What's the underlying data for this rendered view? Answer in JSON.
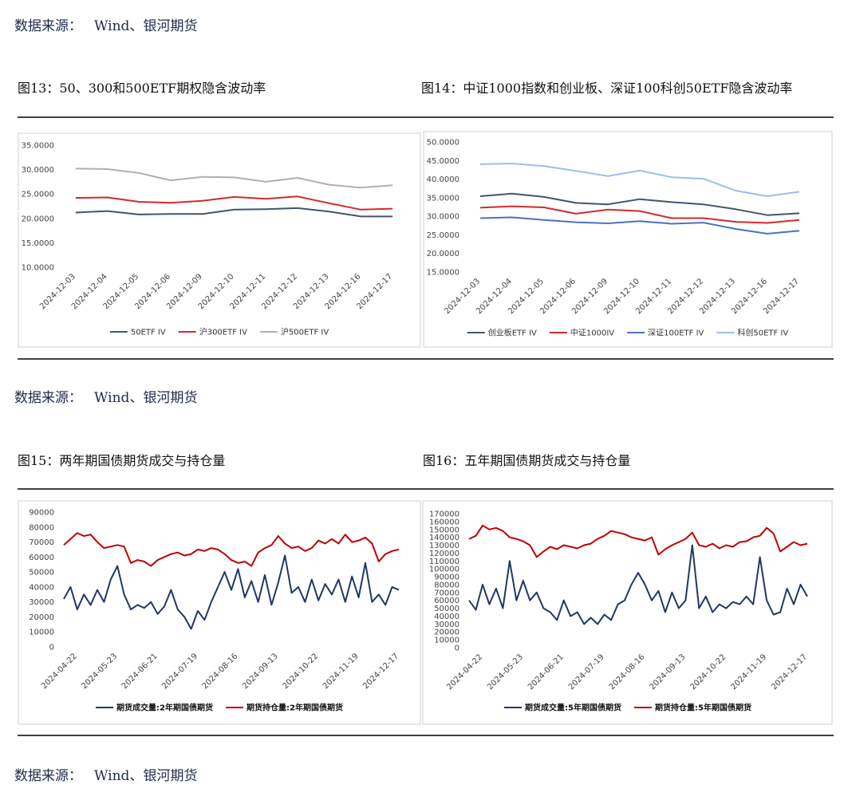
{
  "sources": [
    {
      "label": "数据来源：",
      "text": "Wind、银河期货"
    },
    {
      "label": "数据来源：",
      "text": "Wind、银河期货"
    },
    {
      "label": "数据来源：",
      "text": "Wind、银河期货"
    }
  ],
  "chart_data": [
    {
      "type": "line",
      "title": "图13：50、300和500ETF期权隐含波动率",
      "categories": [
        "2024-12-03",
        "2024-12-04",
        "2024-12-05",
        "2024-12-06",
        "2024-12-09",
        "2024-12-10",
        "2024-12-11",
        "2024-12-12",
        "2024-12-13",
        "2024-12-16",
        "2024-12-17"
      ],
      "ylim": [
        10,
        35
      ],
      "yticks": [
        {
          "value": 10,
          "label": "10.0000"
        },
        {
          "value": 15,
          "label": "15.0000"
        },
        {
          "value": 20,
          "label": "20.0000"
        },
        {
          "value": 25,
          "label": "25.0000"
        },
        {
          "value": 30,
          "label": "30.0000"
        },
        {
          "value": 35,
          "label": "35.0000"
        }
      ],
      "series": [
        {
          "name": "50ETF IV",
          "color": "#44546a",
          "values": [
            21.2,
            21.5,
            20.8,
            20.9,
            20.9,
            21.8,
            21.9,
            22.1,
            21.4,
            20.4,
            20.4
          ]
        },
        {
          "name": "沪300ETF IV",
          "color": "#d42a2a",
          "values": [
            24.2,
            24.3,
            23.4,
            23.2,
            23.6,
            24.4,
            24.0,
            24.5,
            23.1,
            21.8,
            22.0
          ]
        },
        {
          "name": "沪500ETF IV",
          "color": "#b0b0b0",
          "values": [
            30.2,
            30.1,
            29.3,
            27.8,
            28.5,
            28.4,
            27.5,
            28.3,
            26.9,
            26.3,
            26.8
          ]
        }
      ]
    },
    {
      "type": "line",
      "title": "图14：中证1000指数和创业板、深证100科创50ETF隐含波动率",
      "categories": [
        "2024-12-03",
        "2024-12-04",
        "2024-12-05",
        "2024-12-06",
        "2024-12-09",
        "2024-12-10",
        "2024-12-11",
        "2024-12-12",
        "2024-12-13",
        "2024-12-16",
        "2024-12-17"
      ],
      "ylim": [
        15,
        50
      ],
      "yticks": [
        {
          "value": 15,
          "label": "15.0000"
        },
        {
          "value": 20,
          "label": "20.0000"
        },
        {
          "value": 25,
          "label": "25.0000"
        },
        {
          "value": 30,
          "label": "30.0000"
        },
        {
          "value": 35,
          "label": "35.0000"
        },
        {
          "value": 40,
          "label": "40.0000"
        },
        {
          "value": 45,
          "label": "45.0000"
        },
        {
          "value": 50,
          "label": "50.0000"
        }
      ],
      "series": [
        {
          "name": "创业板ETF IV",
          "color": "#44546a",
          "values": [
            35.4,
            36.1,
            35.2,
            33.6,
            33.2,
            34.6,
            33.8,
            33.2,
            31.9,
            30.3,
            30.8
          ]
        },
        {
          "name": "中证1000IV",
          "color": "#d42a2a",
          "values": [
            32.3,
            32.7,
            32.4,
            30.7,
            31.8,
            31.4,
            29.5,
            29.5,
            28.5,
            28.2,
            29.0
          ]
        },
        {
          "name": "深证100ETF IV",
          "color": "#4a72c0",
          "values": [
            29.5,
            29.7,
            29.0,
            28.4,
            28.1,
            28.7,
            28.0,
            28.3,
            26.6,
            25.3,
            26.1
          ]
        },
        {
          "name": "科创50ETF IV",
          "color": "#9dbde8",
          "values": [
            44.0,
            44.2,
            43.5,
            42.2,
            40.8,
            42.3,
            40.5,
            40.1,
            36.9,
            35.4,
            36.6
          ]
        }
      ]
    },
    {
      "type": "line",
      "title": "图15：两年期国债期货成交与持仓量",
      "categories": [
        null,
        null,
        "2024-04-22",
        null,
        null,
        null,
        null,
        null,
        "2024-05-23",
        null,
        null,
        null,
        null,
        null,
        "2024-06-21",
        null,
        null,
        null,
        null,
        null,
        "2024-07-19",
        null,
        null,
        null,
        null,
        null,
        "2024-08-16",
        null,
        null,
        null,
        null,
        null,
        "2024-09-13",
        null,
        null,
        null,
        null,
        null,
        "2024-10-22",
        null,
        null,
        null,
        null,
        null,
        "2024-11-19",
        null,
        null,
        null,
        null,
        null,
        "2024-12-17"
      ],
      "ylim": [
        0,
        90000
      ],
      "yticks": [
        0,
        10000,
        20000,
        30000,
        40000,
        50000,
        60000,
        70000,
        80000,
        90000
      ],
      "series": [
        {
          "name": "期货成交量:2年期国债期货",
          "color": "#203864",
          "values": [
            32000,
            40000,
            25000,
            35000,
            28000,
            38000,
            30000,
            45000,
            54000,
            35000,
            25000,
            28000,
            26000,
            30000,
            22000,
            27000,
            38000,
            25000,
            20000,
            12000,
            24000,
            18000,
            30000,
            40000,
            50000,
            38000,
            52000,
            33000,
            44000,
            30000,
            48000,
            28000,
            43000,
            61000,
            36000,
            40000,
            30000,
            45000,
            31000,
            42000,
            35000,
            45000,
            30000,
            47000,
            33000,
            56000,
            30000,
            35000,
            28000,
            40000,
            38000
          ]
        },
        {
          "name": "期货持仓量:2年期国债期货",
          "color": "#c00000",
          "values": [
            68000,
            72000,
            76000,
            74000,
            75000,
            70000,
            66000,
            67000,
            68000,
            67000,
            56000,
            58000,
            57000,
            54000,
            58000,
            60000,
            62000,
            63000,
            61000,
            62000,
            65000,
            64000,
            66000,
            65000,
            62000,
            58000,
            56000,
            57000,
            54000,
            63000,
            66000,
            68000,
            74000,
            69000,
            66000,
            67000,
            64000,
            66000,
            71000,
            69000,
            72000,
            69000,
            75000,
            70000,
            71000,
            73000,
            69000,
            57000,
            62000,
            64000,
            65000
          ]
        }
      ]
    },
    {
      "type": "line",
      "title": "图16：五年期国债期货成交与持仓量",
      "categories": [
        null,
        null,
        "2024-04-22",
        null,
        null,
        null,
        null,
        null,
        "2024-05-23",
        null,
        null,
        null,
        null,
        null,
        "2024-06-21",
        null,
        null,
        null,
        null,
        null,
        "2024-07-19",
        null,
        null,
        null,
        null,
        null,
        "2024-08-16",
        null,
        null,
        null,
        null,
        null,
        "2024-09-13",
        null,
        null,
        null,
        null,
        null,
        "2024-10-22",
        null,
        null,
        null,
        null,
        null,
        "2024-11-19",
        null,
        null,
        null,
        null,
        null,
        "2024-12-17"
      ],
      "ylim": [
        0,
        170000
      ],
      "yticks": [
        0,
        10000,
        20000,
        30000,
        40000,
        50000,
        60000,
        70000,
        80000,
        90000,
        100000,
        110000,
        120000,
        130000,
        140000,
        150000,
        160000,
        170000
      ],
      "series": [
        {
          "name": "期货成交量:5年期国债期货",
          "color": "#203864",
          "values": [
            60000,
            48000,
            80000,
            55000,
            75000,
            50000,
            110000,
            60000,
            85000,
            60000,
            70000,
            50000,
            45000,
            35000,
            60000,
            40000,
            45000,
            30000,
            38000,
            30000,
            42000,
            35000,
            55000,
            60000,
            80000,
            95000,
            80000,
            60000,
            72000,
            45000,
            70000,
            50000,
            60000,
            130000,
            50000,
            65000,
            45000,
            55000,
            50000,
            58000,
            55000,
            65000,
            55000,
            115000,
            60000,
            42000,
            45000,
            75000,
            55000,
            80000,
            65000
          ]
        },
        {
          "name": "期货持仓量:5年期国债期货",
          "color": "#c00000",
          "values": [
            138000,
            142000,
            155000,
            150000,
            152000,
            148000,
            140000,
            138000,
            135000,
            130000,
            115000,
            122000,
            128000,
            125000,
            130000,
            128000,
            126000,
            130000,
            132000,
            138000,
            142000,
            148000,
            146000,
            144000,
            140000,
            138000,
            136000,
            140000,
            118000,
            125000,
            130000,
            134000,
            138000,
            146000,
            130000,
            128000,
            132000,
            126000,
            130000,
            128000,
            134000,
            135000,
            140000,
            142000,
            152000,
            145000,
            122000,
            128000,
            134000,
            130000,
            132000
          ]
        }
      ]
    }
  ]
}
